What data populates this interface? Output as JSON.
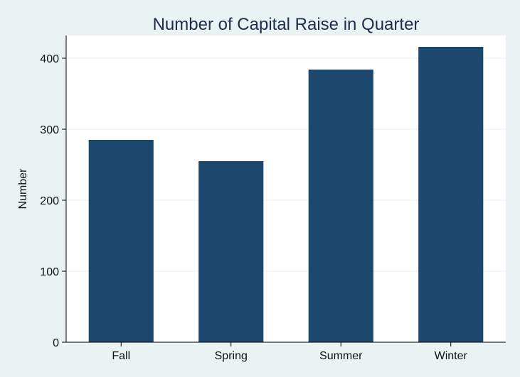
{
  "colors": {
    "background": "#eaf2f3",
    "plot_background": "#ffffff",
    "bar": "#1c476f",
    "grid": "#eaf2f3",
    "axis": "#000000",
    "title": "#1e2d4a"
  },
  "chart_data": {
    "type": "bar",
    "title": "Number of Capital Raise in Quarter",
    "xlabel": "",
    "ylabel": "Number",
    "categories": [
      "Fall",
      "Spring",
      "Summer",
      "Winter"
    ],
    "values": [
      285,
      255,
      384,
      416
    ],
    "ylim": [
      0,
      432
    ],
    "yticks": [
      0,
      100,
      200,
      300,
      400
    ],
    "grid": true,
    "legend": "none"
  }
}
